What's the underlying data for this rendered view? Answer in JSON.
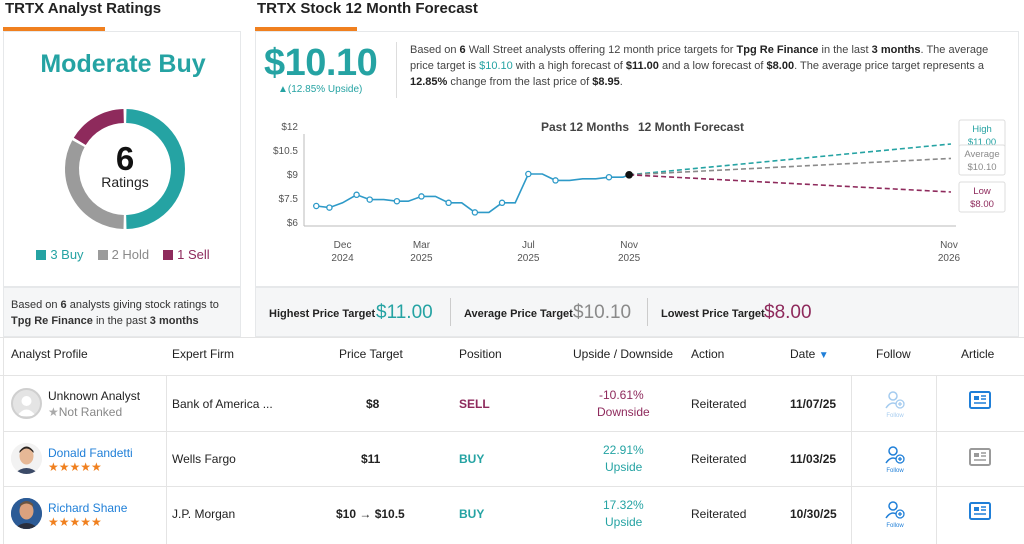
{
  "ratings": {
    "section_title": "TRTX Analyst Ratings",
    "consensus": "Moderate Buy",
    "total": "6",
    "total_label": "Ratings",
    "breakdown": [
      {
        "label": "3 Buy",
        "count": 3,
        "color": "#25a3a3"
      },
      {
        "label": "2 Hold",
        "count": 2,
        "color": "#9b9b9b"
      },
      {
        "label": "1 Sell",
        "count": 1,
        "color": "#8e2a5c"
      }
    ],
    "note_pre": "Based on ",
    "note_count": "6",
    "note_mid": " analysts giving stock ratings to",
    "note_company": "Tpg Re Finance",
    "note_mid2": " in the past ",
    "note_period": "3 months"
  },
  "forecast": {
    "section_title": "TRTX Stock 12 Month Forecast",
    "avg_price": "$10.10",
    "upside": "▲(12.85% Upside)",
    "desc": {
      "p1": "Based on ",
      "count": "6",
      "p2": " Wall Street analysts offering 12 month price targets for ",
      "company": "Tpg Re Finance",
      "p3": " in the last ",
      "period": "3 months",
      "p4": ". The average price target is ",
      "avg": "$10.10",
      "p5": " with a high forecast of ",
      "high": "$11.00",
      "p6": " and a low forecast of ",
      "low": "$8.00",
      "p7": ". The average price target represents a ",
      "change": "12.85%",
      "p8": " change from the last price of ",
      "last": "$8.95",
      "p9": "."
    }
  },
  "chart_data": {
    "type": "line",
    "legend_past": "Past 12 Months",
    "legend_forecast": "12 Month Forecast",
    "y_ticks": [
      "$12",
      "$10.5",
      "$9",
      "$7.5",
      "$6"
    ],
    "ylim": [
      5.8,
      12
    ],
    "x_ticks": [
      {
        "month": "Dec",
        "year": "2024"
      },
      {
        "month": "Mar",
        "year": "2025"
      },
      {
        "month": "Jul",
        "year": "2025"
      },
      {
        "month": "Nov",
        "year": "2025"
      },
      {
        "month": "Nov",
        "year": "2026"
      }
    ],
    "series": [
      {
        "name": "Past 12 Months",
        "x": [
          "2024-11-15",
          "2024-11-30",
          "2024-12-15",
          "2024-12-31",
          "2025-01-15",
          "2025-01-31",
          "2025-02-15",
          "2025-02-28",
          "2025-03-15",
          "2025-03-31",
          "2025-04-15",
          "2025-04-30",
          "2025-05-15",
          "2025-05-31",
          "2025-06-15",
          "2025-06-30",
          "2025-07-15",
          "2025-07-31",
          "2025-08-15",
          "2025-08-31",
          "2025-09-15",
          "2025-09-30",
          "2025-10-15",
          "2025-10-31",
          "2025-11-07"
        ],
        "values": [
          7.0,
          6.9,
          7.2,
          7.7,
          7.4,
          7.4,
          7.3,
          7.3,
          7.6,
          7.6,
          7.2,
          7.2,
          6.6,
          6.6,
          7.2,
          7.2,
          9.0,
          9.0,
          8.6,
          8.6,
          8.7,
          8.7,
          8.8,
          8.8,
          8.95
        ],
        "markers": [
          0,
          1,
          3,
          4,
          6,
          8,
          10,
          12,
          14,
          16,
          18,
          22,
          24
        ]
      }
    ],
    "forecast": [
      {
        "name": "High",
        "value": 11.0,
        "label": "$11.00",
        "color": "#25a3a3"
      },
      {
        "name": "Average",
        "value": 10.1,
        "label": "$10.10",
        "color": "#8a8a8a"
      },
      {
        "name": "Low",
        "value": 8.0,
        "label": "$8.00",
        "color": "#8e2a5c"
      }
    ]
  },
  "targets": {
    "highest_label": "Highest Price Target",
    "highest_value": "$11.00",
    "average_label": "Average Price Target",
    "average_value": "$10.10",
    "lowest_label": "Lowest Price Target",
    "lowest_value": "$8.00"
  },
  "table": {
    "headers": {
      "profile": "Analyst Profile",
      "firm": "Expert Firm",
      "target": "Price Target",
      "position": "Position",
      "upside": "Upside / Downside",
      "action": "Action",
      "date": "Date",
      "follow": "Follow",
      "article": "Article"
    },
    "follow_label": "Follow",
    "rows": [
      {
        "name": "Unknown Analyst",
        "sub": "Not Ranked",
        "firm": "Bank of America ...",
        "target": "$8",
        "position": "SELL",
        "pct": "-10.61%",
        "dir": "Downside",
        "action": "Reiterated",
        "date": "11/07/25"
      },
      {
        "name": "Donald Fandetti",
        "stars": "★★★★★",
        "firm": "Wells Fargo",
        "target": "$11",
        "position": "BUY",
        "pct": "22.91%",
        "dir": "Upside",
        "action": "Reiterated",
        "date": "11/03/25"
      },
      {
        "name": "Richard Shane",
        "stars": "★★★★★",
        "firm": "J.P. Morgan",
        "target": "$10 → $10.5",
        "position": "BUY",
        "pct": "17.32%",
        "dir": "Upside",
        "action": "Reiterated",
        "date": "10/30/25"
      }
    ]
  }
}
